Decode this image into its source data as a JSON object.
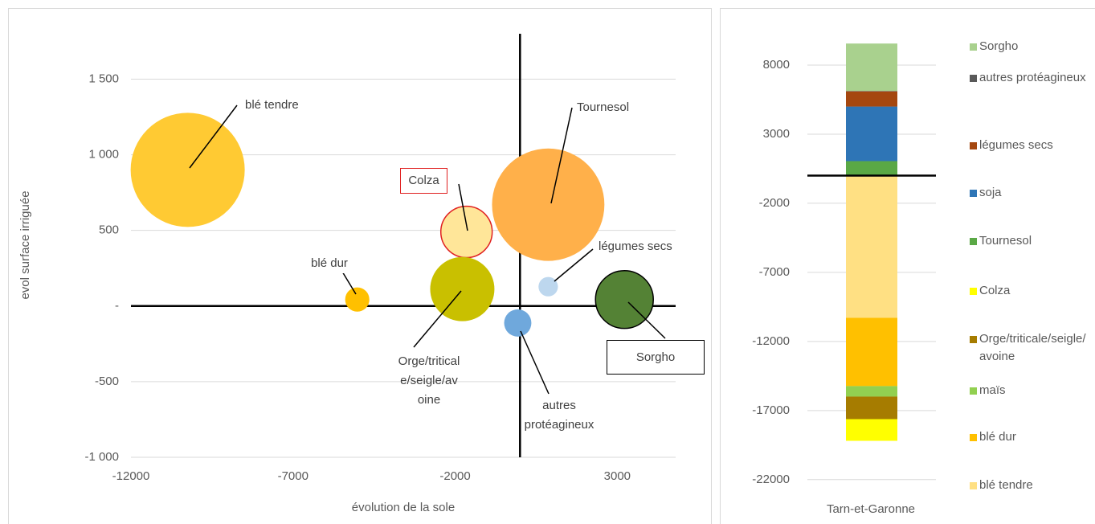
{
  "chart_data": [
    {
      "type": "bubble",
      "xlabel": "évolution de la sole",
      "ylabel": "evol surface irriguée",
      "xlim": [
        -12000,
        4800
      ],
      "xticks": [
        -12000,
        -7000,
        -2000,
        3000
      ],
      "ylim": [
        -1000,
        1800
      ],
      "yticks": [
        {
          "value": -1000,
          "label": "-1 000"
        },
        -500,
        {
          "value": 0,
          "label": "-"
        },
        500,
        {
          "value": 1000,
          "label": "1 000"
        },
        {
          "value": 1500,
          "label": "1 500"
        }
      ],
      "grid": true,
      "series": [
        {
          "name": "blé tendre",
          "color": "#ffca33",
          "x": [
            -10250
          ],
          "values": [
            900
          ],
          "sizes": [
            10000
          ]
        },
        {
          "name": "Colza",
          "color": "#ffe699",
          "x": [
            -1650
          ],
          "values": [
            490
          ],
          "sizes": [
            2030
          ]
        },
        {
          "name": "Tournesol",
          "color": "#ffb04a",
          "x": [
            870
          ],
          "values": [
            670
          ],
          "sizes": [
            9700
          ]
        },
        {
          "name": "légumes secs",
          "color": "#bdd7ee",
          "x": [
            870
          ],
          "values": [
            128
          ],
          "sizes": [
            290
          ]
        },
        {
          "name": "blé dur",
          "color": "#ffc000",
          "x": [
            -5020
          ],
          "values": [
            43
          ],
          "sizes": [
            450
          ]
        },
        {
          "name": "Orge/triticale/seigle/avoine",
          "color": "#c9c000",
          "x": [
            -1780
          ],
          "values": [
            112
          ],
          "sizes": [
            3170
          ]
        },
        {
          "name": "autres protéagineux",
          "color": "#6fa8dc",
          "x": [
            -70
          ],
          "values": [
            -112
          ],
          "sizes": [
            570
          ]
        },
        {
          "name": "Sorgho",
          "color": "#548235",
          "x": [
            3220
          ],
          "values": [
            43
          ],
          "sizes": [
            2570
          ]
        }
      ]
    },
    {
      "type": "stacked_bar",
      "categories": [
        "Tarn-et-Garonne"
      ],
      "ylim": [
        -23000,
        10500
      ],
      "yticks": [
        -22000,
        -17000,
        -12000,
        -7000,
        -2000,
        3000,
        8000
      ],
      "grid": true,
      "series": [
        {
          "name": "blé tendre",
          "color": "#ffe083",
          "values": [
            -10290
          ]
        },
        {
          "name": "blé dur",
          "color": "#ffc000",
          "values": [
            -4940
          ]
        },
        {
          "name": "maïs",
          "color": "#92d050",
          "values": [
            -760
          ]
        },
        {
          "name": "Orge/triticale/seigle/avoine",
          "color": "#a67c00",
          "values": [
            -1630
          ]
        },
        {
          "name": "Colza",
          "color": "#ffff00",
          "values": [
            -1570
          ]
        },
        {
          "name": "Tournesol",
          "color": "#5aa845",
          "values": [
            1050
          ]
        },
        {
          "name": "soja",
          "color": "#2e75b6",
          "values": [
            3950
          ]
        },
        {
          "name": "légumes secs",
          "color": "#a5470f",
          "values": [
            1100
          ]
        },
        {
          "name": "autres protéagineux",
          "color": "#595959",
          "values": [
            30
          ]
        },
        {
          "name": "Sorgho",
          "color": "#a9d18e",
          "values": [
            3430
          ]
        }
      ]
    }
  ]
}
